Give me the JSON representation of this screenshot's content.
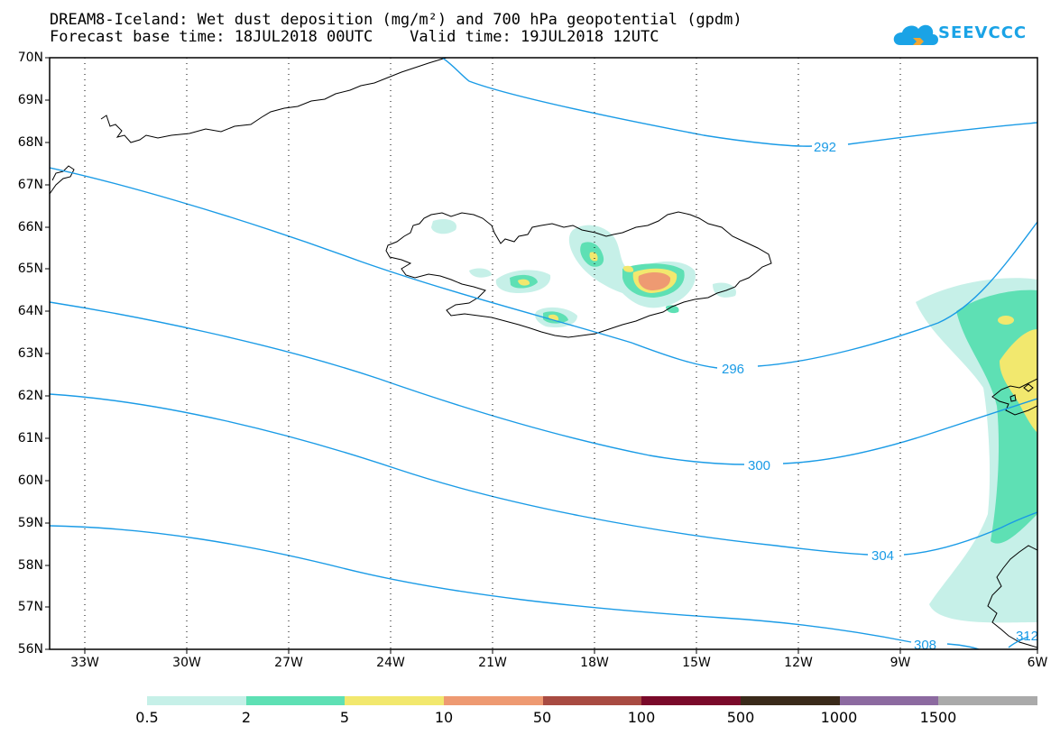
{
  "title": {
    "line1": "DREAM8-Iceland: Wet dust deposition (mg/m²) and 700 hPa geopotential (gpdm)",
    "line2": "Forecast base time: 18JUL2018 00UTC    Valid time: 19JUL2018 12UTC"
  },
  "logo": {
    "text": "SEEVCCC",
    "icon": "cloud-logo-icon",
    "color": "#1aa3e6"
  },
  "axes": {
    "lat_labels": [
      "70N",
      "69N",
      "68N",
      "67N",
      "66N",
      "65N",
      "64N",
      "63N",
      "62N",
      "61N",
      "60N",
      "59N",
      "58N",
      "57N",
      "56N"
    ],
    "lon_labels": [
      "33W",
      "30W",
      "27W",
      "24W",
      "21W",
      "18W",
      "15W",
      "12W",
      "9W",
      "6W"
    ],
    "lon_range": [
      -35,
      -6
    ],
    "lat_range": [
      56,
      70
    ],
    "grid": "dotted"
  },
  "contours": {
    "color": "#1a9be6",
    "labels": [
      "292",
      "296",
      "300",
      "304",
      "308",
      "312"
    ]
  },
  "colorbar": {
    "colors": [
      "#c6f0e8",
      "#5ee0b4",
      "#f2e86e",
      "#ee9a72",
      "#a84b42",
      "#7a0a2a",
      "#3a2a1a",
      "#8c6aa0",
      "#aaaaaa"
    ],
    "labels": [
      "0.5",
      "2",
      "5",
      "10",
      "50",
      "100",
      "500",
      "1000",
      "1500"
    ]
  }
}
